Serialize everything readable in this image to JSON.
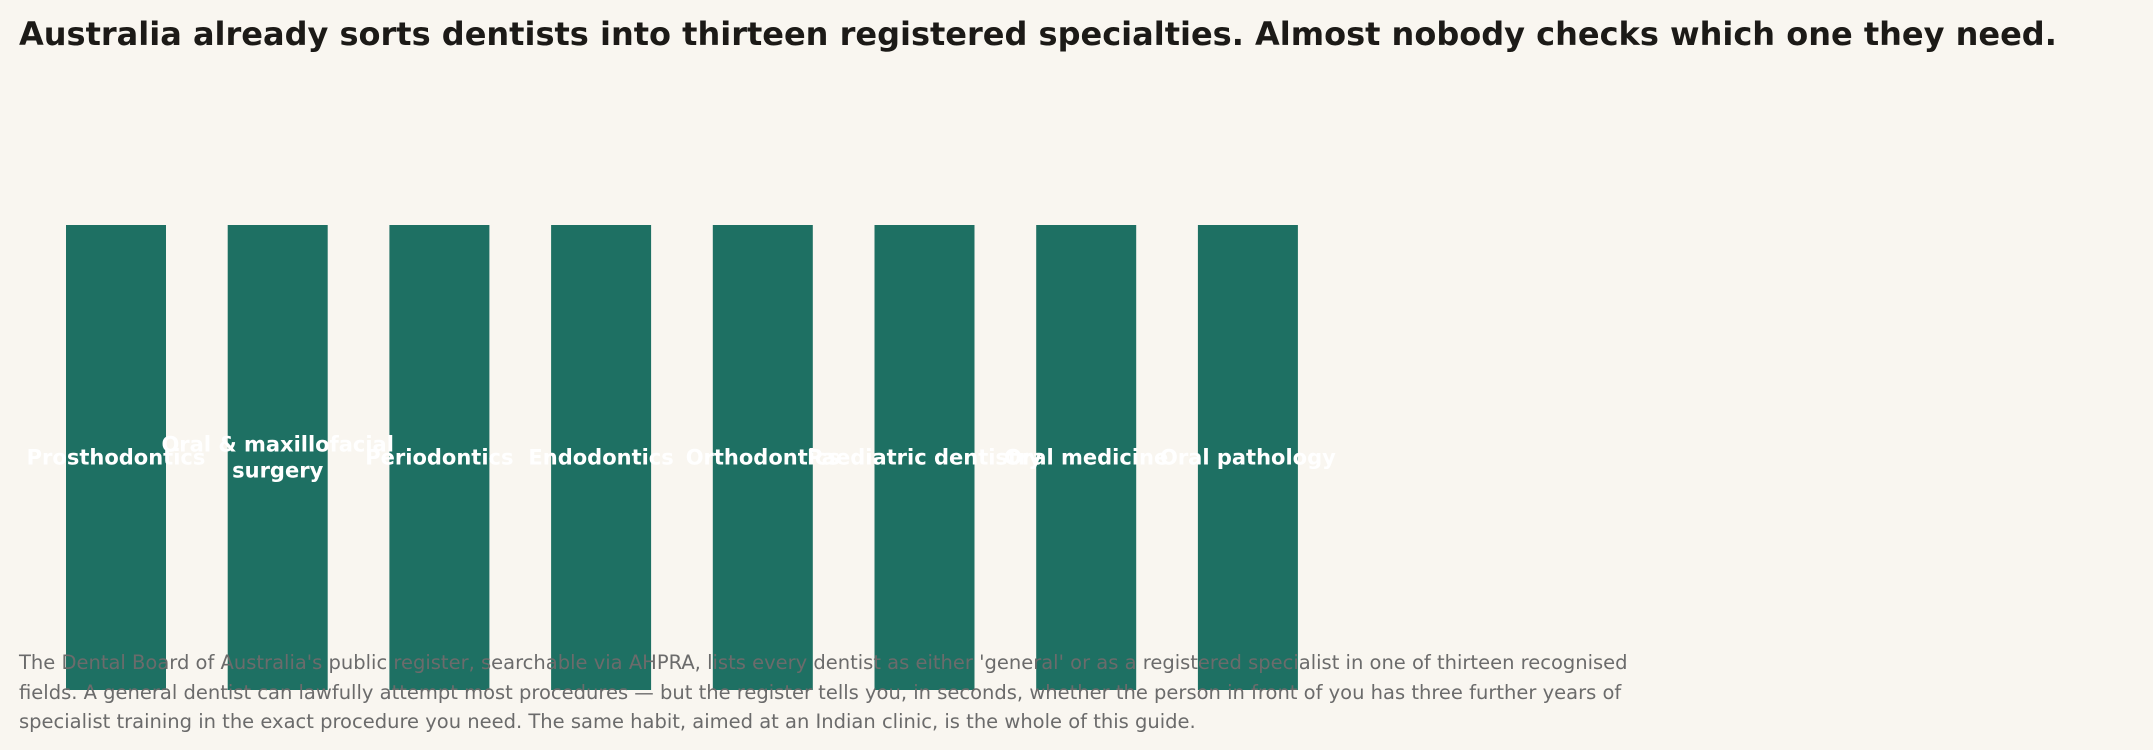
{
  "title": "Australia already sorts dentists into thirteen registered specialties. Almost nobody checks which one they need.",
  "caption": "The Dental Board of Australia's public register, searchable via AHPRA, lists every dentist as either 'general' or as a registered specialist in one of thirteen recognised fields. A general dentist can lawfully attempt most procedures — but the register tells you, in seconds, whether the person in front of you has three further years of specialist training in the exact procedure you need. The same habit, aimed at an Indian clinic, is the whole of this guide.",
  "colors": {
    "background": "#f9f6f0",
    "bar": "#1e7063",
    "label": "#ffffff",
    "title": "#1c1a17",
    "caption": "#6b6b6b"
  },
  "chart_data": {
    "type": "bar",
    "title": "",
    "xlabel": "",
    "ylabel": "",
    "categories": [
      [
        "Prosthodontics"
      ],
      [
        "Oral & maxillofacial",
        "surgery"
      ],
      [
        "Periodontics"
      ],
      [
        "Endodontics"
      ],
      [
        "Orthodontics"
      ],
      [
        "Paediatric dentistry"
      ],
      [
        "Oral medicine"
      ],
      [
        "Oral pathology"
      ]
    ],
    "values": [
      1,
      1,
      1,
      1,
      1,
      1,
      1,
      1
    ],
    "ylim": [
      0,
      1
    ],
    "grid": false,
    "axes_visible": false
  }
}
